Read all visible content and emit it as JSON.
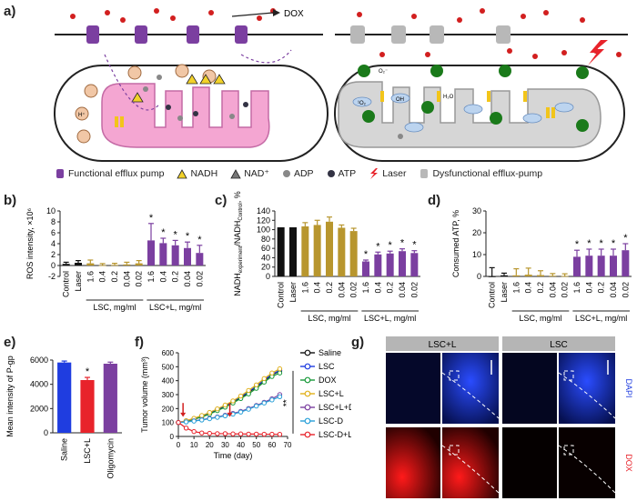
{
  "panel_labels": {
    "a": "a)",
    "b": "b)",
    "c": "c)",
    "d": "d)",
    "e": "e)",
    "f": "f)",
    "g": "g)"
  },
  "diagram": {
    "dox_label": "DOX",
    "molecules": {
      "h_plus": "H⁺",
      "o2_minus": "O₂⁻",
      "oh": "OH",
      "h2o": "H₂O",
      "o": "¹O₂"
    },
    "legend": [
      "Functional efflux pump",
      "NADH",
      "NAD⁺",
      "ADP",
      "ATP",
      "Laser",
      "Dysfunctional efflux-pump"
    ]
  },
  "colors": {
    "purple": "#7b3fa0",
    "gold": "#b8962e",
    "black": "#111111",
    "pink": "#f4a6d2",
    "cell_gray": "#d6d6d6",
    "green": "#1a7a1a",
    "red": "#d21f1f"
  },
  "chart_data": [
    {
      "id": "b",
      "type": "bar",
      "ylabel": "ROS intensity, ×10⁶",
      "ylim": [
        -2,
        10
      ],
      "yticks": [
        -2,
        0,
        2,
        4,
        6,
        8,
        10
      ],
      "categories": [
        "Control",
        "Laser",
        "1.6",
        "0.4",
        "0.2",
        "0.04",
        "0.02",
        "1.6",
        "0.4",
        "0.2",
        "0.04",
        "0.02"
      ],
      "values": [
        0.3,
        0.5,
        0.4,
        0.05,
        0.1,
        0.2,
        0.4,
        4.6,
        4.1,
        3.7,
        3.2,
        2.3
      ],
      "errors": [
        0.3,
        0.4,
        0.6,
        0.3,
        0.3,
        0.4,
        0.5,
        3.1,
        0.9,
        0.9,
        1.1,
        1.4
      ],
      "colors": [
        "black",
        "black",
        "gold",
        "gold",
        "gold",
        "gold",
        "gold",
        "purple",
        "purple",
        "purple",
        "purple",
        "purple"
      ],
      "stars": [
        7,
        8,
        9,
        10,
        11
      ],
      "groups": [
        {
          "label": "LSC, mg/ml",
          "from": 2,
          "to": 6
        },
        {
          "label": "LSC+L, mg/ml",
          "from": 7,
          "to": 11
        }
      ]
    },
    {
      "id": "c",
      "type": "bar",
      "ylabel_main": "NADH",
      "ylabel_sub1": "experiment",
      "ylabel_mid": "/NADH",
      "ylabel_sub2": "Control",
      "ylabel_tail": ", %",
      "ylim": [
        0,
        140
      ],
      "yticks": [
        0,
        20,
        40,
        60,
        80,
        100,
        120,
        140
      ],
      "categories": [
        "Control",
        "Laser",
        "1.6",
        "0.4",
        "0.2",
        "0.04",
        "0.02",
        "1.6",
        "0.4",
        "0.2",
        "0.04",
        "0.02"
      ],
      "values": [
        105,
        105,
        107,
        110,
        117,
        104,
        97,
        32,
        47,
        49,
        54,
        50
      ],
      "errors": [
        0,
        0,
        8,
        10,
        10,
        6,
        6,
        3,
        5,
        5,
        5,
        5
      ],
      "colors": [
        "black",
        "black",
        "gold",
        "gold",
        "gold",
        "gold",
        "gold",
        "purple",
        "purple",
        "purple",
        "purple",
        "purple"
      ],
      "stars": [
        7,
        8,
        9,
        10,
        11
      ],
      "groups": [
        {
          "label": "LSC, mg/ml",
          "from": 2,
          "to": 6
        },
        {
          "label": "LSC+L, mg/ml",
          "from": 7,
          "to": 11
        }
      ]
    },
    {
      "id": "d",
      "type": "bar",
      "ylabel": "Consumed ATP, %",
      "ylim": [
        0,
        30
      ],
      "yticks": [
        0,
        10,
        20,
        30
      ],
      "categories": [
        "Control",
        "Laser",
        "1.6",
        "0.4",
        "0.2",
        "0.04",
        "0.02",
        "1.6",
        "0.4",
        "0.2",
        "0.04",
        "0.02"
      ],
      "values": [
        0,
        0.5,
        0.5,
        0.8,
        0.6,
        0.3,
        0.2,
        9,
        9.5,
        9.5,
        9.5,
        12
      ],
      "errors": [
        4,
        1,
        3,
        3,
        2,
        1,
        1,
        3,
        3,
        3,
        3,
        3
      ],
      "colors": [
        "black",
        "black",
        "gold",
        "gold",
        "gold",
        "gold",
        "gold",
        "purple",
        "purple",
        "purple",
        "purple",
        "purple"
      ],
      "stars": [
        7,
        8,
        9,
        10,
        11
      ],
      "groups": [
        {
          "label": "LSC, mg/ml",
          "from": 2,
          "to": 6
        },
        {
          "label": "LSC+L, mg/ml",
          "from": 7,
          "to": 11
        }
      ]
    },
    {
      "id": "e",
      "type": "bar",
      "ylabel": "Mean intensity of P-gp",
      "ylim": [
        0,
        6000
      ],
      "yticks": [
        0,
        2000,
        4000,
        6000
      ],
      "categories": [
        "Saline",
        "LSC+L",
        "Oligomycin"
      ],
      "values": [
        5800,
        4350,
        5700
      ],
      "errors": [
        120,
        220,
        130
      ],
      "colors": [
        "#1f3de0",
        "#e8232b",
        "#7b3fa0"
      ],
      "stars": [
        1
      ]
    },
    {
      "id": "f",
      "type": "line",
      "xlabel": "Time (day)",
      "ylabel": "Tumor volume (mm³)",
      "xlim": [
        0,
        70
      ],
      "ylim": [
        0,
        600
      ],
      "xticks": [
        0,
        10,
        20,
        30,
        40,
        50,
        60,
        70
      ],
      "yticks": [
        0,
        100,
        200,
        300,
        400,
        500,
        600
      ],
      "x": [
        0,
        5,
        10,
        15,
        20,
        25,
        30,
        35,
        40,
        45,
        50,
        55,
        60,
        65
      ],
      "series": [
        {
          "name": "Saline",
          "color": "#111111",
          "values": [
            100,
            110,
            125,
            145,
            165,
            190,
            215,
            245,
            280,
            315,
            355,
            400,
            440,
            470
          ]
        },
        {
          "name": "LSC",
          "color": "#1f3de0",
          "values": [
            100,
            112,
            128,
            148,
            170,
            195,
            220,
            250,
            285,
            320,
            360,
            405,
            445,
            475
          ]
        },
        {
          "name": "DOX",
          "color": "#1a9a3a",
          "values": [
            100,
            108,
            122,
            140,
            160,
            185,
            210,
            240,
            272,
            305,
            345,
            390,
            430,
            455
          ]
        },
        {
          "name": "LSC+L",
          "color": "#e0b01a",
          "values": [
            100,
            113,
            130,
            150,
            172,
            198,
            225,
            255,
            290,
            330,
            370,
            415,
            455,
            485
          ]
        },
        {
          "name": "LSC+L+D",
          "color": "#7b3fa0",
          "values": [
            100,
            105,
            112,
            120,
            130,
            140,
            152,
            165,
            180,
            200,
            222,
            245,
            270,
            300
          ]
        },
        {
          "name": "LSC-D",
          "color": "#29a0d8",
          "values": [
            100,
            104,
            110,
            118,
            127,
            137,
            148,
            160,
            175,
            195,
            218,
            240,
            262,
            285
          ]
        },
        {
          "name": "LSC-D+L",
          "color": "#e8232b",
          "values": [
            100,
            60,
            35,
            25,
            22,
            20,
            20,
            18,
            18,
            17,
            17,
            16,
            16,
            15
          ]
        }
      ],
      "arrows_at": [
        3,
        33
      ],
      "significance": "**"
    }
  ],
  "micrograph": {
    "header_left": "LSC+L",
    "header_right": "LSC",
    "channels": [
      "DAPI",
      "DOX"
    ]
  }
}
